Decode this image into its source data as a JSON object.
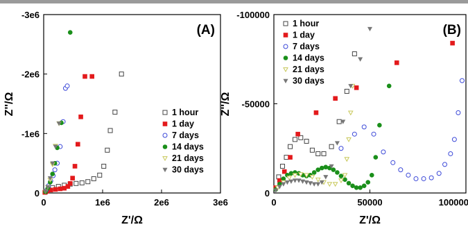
{
  "chart_data": [
    {
      "type": "scatter",
      "panel_label": "(A)",
      "xlabel": "Z'/Ω",
      "ylabel": "Z''/Ω",
      "xlim": [
        0,
        3000000
      ],
      "ylim": [
        0,
        -3000000
      ],
      "xticks": [
        "0",
        "1e6",
        "2e6",
        "3e6"
      ],
      "yticks": [
        "0",
        "-1e6",
        "-2e6",
        "-3e6"
      ],
      "legend_position": "middle-right",
      "series": [
        {
          "name": "1 hour",
          "color": "#444444",
          "marker": "square-open",
          "x": [
            30000,
            80000,
            150000,
            250000,
            350000,
            450000,
            550000,
            650000,
            750000,
            850000,
            950000,
            1020000,
            1080000,
            1130000,
            1210000,
            1320000
          ],
          "y": [
            -20000,
            -60000,
            -90000,
            -110000,
            -130000,
            -150000,
            -160000,
            -170000,
            -190000,
            -240000,
            -300000,
            -450000,
            -720000,
            -1050000,
            -1360000,
            -2000000
          ]
        },
        {
          "name": "1 day",
          "color": "#e31a1c",
          "marker": "square-filled",
          "x": [
            20000,
            60000,
            120000,
            200000,
            280000,
            350000,
            410000,
            450000,
            490000,
            530000,
            580000,
            630000,
            700000,
            820000
          ],
          "y": [
            -10000,
            -30000,
            -50000,
            -60000,
            -70000,
            -80000,
            -110000,
            -160000,
            -250000,
            -450000,
            -820000,
            -1280000,
            -1960000,
            -1960000
          ]
        },
        {
          "name": "7 days",
          "color": "#3b48d8",
          "marker": "circle-open",
          "x": [
            40000,
            80000,
            120000,
            160000,
            190000,
            230000,
            280000,
            330000,
            370000,
            400000
          ],
          "y": [
            -40000,
            -120000,
            -200000,
            -290000,
            -390000,
            -500000,
            -780000,
            -1200000,
            -1760000,
            -1800000
          ]
        },
        {
          "name": "14 days",
          "color": "#1a8f1a",
          "marker": "circle-filled",
          "x": [
            30000,
            70000,
            110000,
            150000,
            190000,
            230000,
            300000,
            450000
          ],
          "y": [
            -20000,
            -80000,
            -180000,
            -320000,
            -500000,
            -760000,
            -1180000,
            -2700000
          ]
        },
        {
          "name": "21 days",
          "color": "#c8c85a",
          "marker": "triangle-down-open",
          "x": [
            30000,
            70000,
            110000,
            150000,
            200000,
            260000
          ],
          "y": [
            -30000,
            -100000,
            -220000,
            -480000,
            -790000,
            -1170000
          ]
        },
        {
          "name": "30 days",
          "color": "#777777",
          "marker": "triangle-down-filled",
          "x": [
            30000,
            70000,
            110000,
            150000,
            200000,
            260000
          ],
          "y": [
            -30000,
            -100000,
            -250000,
            -500000,
            -780000,
            -1170000
          ]
        }
      ]
    },
    {
      "type": "scatter",
      "panel_label": "(B)",
      "xlabel": "Z'/Ω",
      "ylabel": "Z''/Ω",
      "xlim": [
        0,
        100000
      ],
      "ylim": [
        0,
        -100000
      ],
      "xticks": [
        "0",
        "50000",
        "100000"
      ],
      "yticks": [
        "0",
        "-50000",
        "-100000"
      ],
      "legend_position": "top-left",
      "series": [
        {
          "name": "1 hour",
          "color": "#444444",
          "marker": "square-open",
          "x": [
            2500,
            4500,
            6500,
            8500,
            11000,
            14000,
            17000,
            20000,
            23000,
            26000,
            30000,
            34000,
            38000,
            42000
          ],
          "y": [
            -9000,
            -15000,
            -20000,
            -26000,
            -30000,
            -31000,
            -29000,
            -24000,
            -22000,
            -22000,
            -26000,
            -40000,
            -57000,
            -78000
          ]
        },
        {
          "name": "1 day",
          "color": "#e31a1c",
          "marker": "square-filled",
          "x": [
            1000,
            3000,
            5500,
            8500,
            12500,
            22000,
            32000,
            43000,
            64000,
            93000
          ],
          "y": [
            -3000,
            -7000,
            -12000,
            -20000,
            -33000,
            -45000,
            -53000,
            -59000,
            -73000,
            -84000
          ]
        },
        {
          "name": "7 days",
          "color": "#3b48d8",
          "marker": "circle-open",
          "x": [
            35000,
            42000,
            47000,
            52000,
            57000,
            62000,
            66000,
            70000,
            74000,
            78000,
            82000,
            86000,
            89000,
            92000,
            94000,
            96000,
            98000
          ],
          "y": [
            -25000,
            -33000,
            -37000,
            -33000,
            -23000,
            -17000,
            -13000,
            -10000,
            -8000,
            -8000,
            -8500,
            -11000,
            -16000,
            -22000,
            -30000,
            -45000,
            -63000
          ]
        },
        {
          "name": "14 days",
          "color": "#1a8f1a",
          "marker": "circle-filled",
          "x": [
            1000,
            3000,
            5000,
            7000,
            9000,
            11000,
            13000,
            15000,
            17000,
            19000,
            21000,
            23000,
            25000,
            27000,
            29000,
            31000,
            33000,
            35000,
            37000,
            39000,
            41000,
            43000,
            45000,
            47000,
            49000,
            51000,
            53000,
            55000,
            60000
          ],
          "y": [
            -2000,
            -5000,
            -8000,
            -10000,
            -11000,
            -11500,
            -11000,
            -10000,
            -9500,
            -10000,
            -11500,
            -13000,
            -14000,
            -14500,
            -14000,
            -13000,
            -11500,
            -9500,
            -7500,
            -5500,
            -4000,
            -3000,
            -3000,
            -4000,
            -6000,
            -10000,
            -20000,
            -38000,
            -60000
          ]
        },
        {
          "name": "21 days",
          "color": "#c8c85a",
          "marker": "triangle-down-open",
          "x": [
            2000,
            5000,
            8000,
            11000,
            14000,
            17000,
            20000,
            23000,
            26000,
            29000,
            32000,
            35000,
            37000,
            38000,
            39000,
            40000,
            41000
          ],
          "y": [
            -3000,
            -6000,
            -8500,
            -10000,
            -10500,
            -10000,
            -9000,
            -7500,
            -6000,
            -5000,
            -5000,
            -7000,
            -10000,
            -19000,
            -30000,
            -45000,
            -60000
          ]
        },
        {
          "name": "30 days",
          "color": "#777777",
          "marker": "triangle-down-filled",
          "x": [
            1000,
            3000,
            5000,
            7000,
            9000,
            11000,
            13000,
            15000,
            17000,
            19000,
            21000,
            23000,
            25000,
            27000,
            30000,
            33000,
            36000,
            40000,
            45000,
            50000
          ],
          "y": [
            -1500,
            -3500,
            -5000,
            -6000,
            -6500,
            -7000,
            -7000,
            -6500,
            -6000,
            -5500,
            -5000,
            -5000,
            -6000,
            -9000,
            -15000,
            -28000,
            -40000,
            -60000,
            -75000,
            -92000
          ]
        }
      ]
    }
  ]
}
